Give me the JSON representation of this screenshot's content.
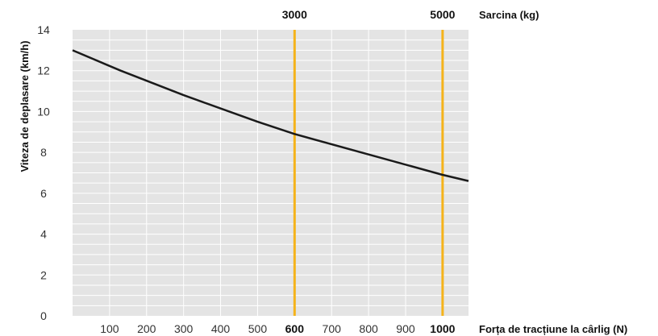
{
  "chart_data": {
    "type": "line",
    "ylabel": "Viteza de deplasare (km/h)",
    "xlabel": "Forța de tracțiune  la cârlig (N)",
    "top_axis_label": "Sarcina (kg)",
    "ylim": [
      0,
      14
    ],
    "yticks": [
      0,
      2,
      4,
      6,
      8,
      10,
      12,
      14
    ],
    "xlim": [
      0,
      1070
    ],
    "xticks": [
      100,
      200,
      300,
      400,
      500,
      600,
      700,
      800,
      900,
      1000
    ],
    "xticks_bold": [
      600,
      1000
    ],
    "grid": true,
    "series": [
      {
        "x": [
          0,
          130,
          300,
          500,
          600,
          800,
          1000,
          1070
        ],
        "y": [
          13.0,
          12.0,
          10.8,
          9.5,
          8.9,
          7.9,
          6.9,
          6.6
        ]
      }
    ],
    "markers": [
      {
        "x": 600,
        "label": "3000"
      },
      {
        "x": 1000,
        "label": "5000"
      }
    ],
    "colors": {
      "plot_bg": "#e4e4e4",
      "grid": "#ffffff",
      "line": "#1a1a1a",
      "marker": "#f5b31b"
    }
  }
}
